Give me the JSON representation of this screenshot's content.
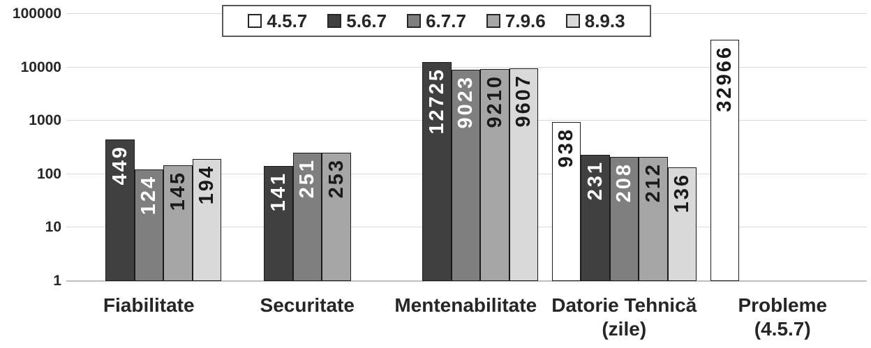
{
  "chart_data": {
    "type": "bar",
    "scale": "log-y",
    "title": "",
    "xlabel": "",
    "ylabel": "",
    "categories": [
      "Fiabilitate",
      "Securitate",
      "Mentenabilitate",
      "Datorie Tehnică\n(zile)",
      "Probleme\n(4.5.7)"
    ],
    "series": [
      {
        "name": "4.5.7",
        "color": "#ffffff",
        "label_color": "#1a1a1a",
        "values": [
          null,
          null,
          null,
          938,
          32966
        ]
      },
      {
        "name": "5.6.7",
        "color": "#404040",
        "label_color": "#ffffff",
        "values": [
          449,
          141,
          12725,
          231,
          null
        ]
      },
      {
        "name": "6.7.7",
        "color": "#7f7f7f",
        "label_color": "#ffffff",
        "values": [
          124,
          251,
          9023,
          208,
          null
        ]
      },
      {
        "name": "7.9.6",
        "color": "#a6a6a6",
        "label_color": "#1a1a1a",
        "values": [
          145,
          253,
          9210,
          212,
          null
        ]
      },
      {
        "name": "8.9.3",
        "color": "#d9d9d9",
        "label_color": "#1a1a1a",
        "values": [
          194,
          null,
          9607,
          136,
          null
        ]
      }
    ],
    "y_ticks": [
      "1",
      "10",
      "100",
      "1000",
      "10000",
      "100000"
    ],
    "ylim": [
      1,
      100000
    ],
    "legend_position": "top",
    "gridlines": "horizontal",
    "bar_labels": "rotated-vertical-inside-end",
    "colors": {
      "grid": "#d9d9d9",
      "axis": "#bfbfbf",
      "text": "#262626",
      "bar_border": "#1a1a1a",
      "legend_border": "#595959"
    }
  }
}
